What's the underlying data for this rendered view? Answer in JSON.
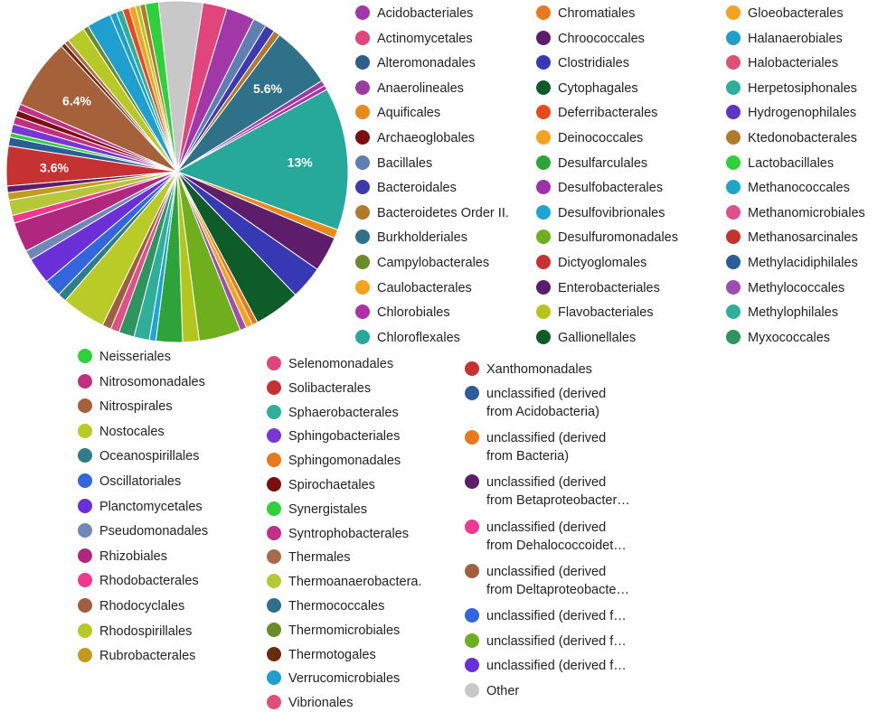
{
  "chart_data": {
    "type": "pie",
    "slices": [
      {
        "name": "Other",
        "value": 4.0,
        "color": "#c8c8c8"
      },
      {
        "name": "Actinomycetales",
        "value": 2.2,
        "color": "#e0457b"
      },
      {
        "name": "Acidobacteriales",
        "value": 2.6,
        "color": "#a237a8"
      },
      {
        "name": "Bacillales",
        "value": 1.2,
        "color": "#5f7fb4"
      },
      {
        "name": "Bacteroidales",
        "value": 0.9,
        "color": "#3c3aae"
      },
      {
        "name": "Bacteroidetes Order II.",
        "value": 0.6,
        "color": "#b07a2a"
      },
      {
        "name": "Burkholderiales",
        "value": 5.6,
        "color": "#2e7189",
        "label": "5.6%"
      },
      {
        "name": "Anaerolineales",
        "value": 0.5,
        "color": "#9b3d9e"
      },
      {
        "name": "Chlorobiales",
        "value": 0.4,
        "color": "#b12fa6"
      },
      {
        "name": "Chloroflexales",
        "value": 13.0,
        "color": "#26a99b",
        "label": "13%"
      },
      {
        "name": "Aquificales",
        "value": 0.8,
        "color": "#e8891c"
      },
      {
        "name": "Chroococcales",
        "value": 3.2,
        "color": "#5d1d6b"
      },
      {
        "name": "Clostridiales",
        "value": 3.0,
        "color": "#3738b4"
      },
      {
        "name": "Cytophagales",
        "value": 4.2,
        "color": "#0f5c2b"
      },
      {
        "name": "Chromatiales",
        "value": 0.5,
        "color": "#e8791c"
      },
      {
        "name": "Deinococcales",
        "value": 0.6,
        "color": "#f5a21e"
      },
      {
        "name": "Methylococcales",
        "value": 0.6,
        "color": "#9b4fb0"
      },
      {
        "name": "Desulfuromonadales",
        "value": 3.8,
        "color": "#6fae1c"
      },
      {
        "name": "Flavobacteriales",
        "value": 1.5,
        "color": "#b4c61e"
      },
      {
        "name": "Desulfarculales",
        "value": 2.4,
        "color": "#2ea33a"
      },
      {
        "name": "Desulfovibrionales",
        "value": 0.6,
        "color": "#1ea5d6"
      },
      {
        "name": "Methylophilales",
        "value": 1.4,
        "color": "#2fae9a"
      },
      {
        "name": "Myxococcales",
        "value": 1.4,
        "color": "#2e9460"
      },
      {
        "name": "Methanomicrobiales",
        "value": 0.8,
        "color": "#e04f8a"
      },
      {
        "name": "Rhodocyclales",
        "value": 0.8,
        "color": "#a06040"
      },
      {
        "name": "Nostocales",
        "value": 4.0,
        "color": "#b8cb26"
      },
      {
        "name": "Oceanospirillales",
        "value": 0.8,
        "color": "#2f7d8a"
      },
      {
        "name": "Oscillatoriales",
        "value": 1.6,
        "color": "#3366dd"
      },
      {
        "name": "Planctomycetales",
        "value": 2.4,
        "color": "#6a2fd6"
      },
      {
        "name": "Pseudomonadales",
        "value": 0.9,
        "color": "#6f88b8"
      },
      {
        "name": "Rhizobiales",
        "value": 2.7,
        "color": "#b0287e"
      },
      {
        "name": "Rhodobacterales",
        "value": 0.7,
        "color": "#f0388f"
      },
      {
        "name": "Thermoanaerobactera.",
        "value": 1.4,
        "color": "#b5c83a"
      },
      {
        "name": "Rubrobacterales",
        "value": 0.7,
        "color": "#c49a1e"
      },
      {
        "name": "Enterobacteriales",
        "value": 0.6,
        "color": "#5e1d6a"
      },
      {
        "name": "Methanosarcinales",
        "value": 3.6,
        "color": "#c63131",
        "label": "3.6%"
      },
      {
        "name": "Methylacidiphilales",
        "value": 0.8,
        "color": "#2d5d96"
      },
      {
        "name": "Lactobacillales",
        "value": 0.4,
        "color": "#2ed13c"
      },
      {
        "name": "Sphingobacteriales",
        "value": 0.8,
        "color": "#7a35d6"
      },
      {
        "name": "Nitrosomonadales",
        "value": 0.7,
        "color": "#c0307f"
      },
      {
        "name": "Spirochaetales",
        "value": 0.6,
        "color": "#7b0f0f"
      },
      {
        "name": "Syntrophobacterales",
        "value": 0.6,
        "color": "#c0308b"
      },
      {
        "name": "Nitrospirales",
        "value": 6.4,
        "color": "#a5613a",
        "label": "6.4%"
      },
      {
        "name": "Thermotogales",
        "value": 0.4,
        "color": "#6a2b0f"
      },
      {
        "name": "Thermales",
        "value": 0.4,
        "color": "#a86a4a"
      },
      {
        "name": "Rhodospirillales",
        "value": 1.7,
        "color": "#b7c926"
      },
      {
        "name": "Thermomicrobiales",
        "value": 0.5,
        "color": "#6b8a2a"
      },
      {
        "name": "Verrucomicrobiales",
        "value": 2.2,
        "color": "#1e9fd0"
      },
      {
        "name": "Halanaerobiales",
        "value": 0.6,
        "color": "#1ea0c8"
      },
      {
        "name": "Herpetosiphonales",
        "value": 0.6,
        "color": "#2fae9e"
      },
      {
        "name": "Deferribacterales",
        "value": 0.6,
        "color": "#e84a1e"
      },
      {
        "name": "Gloeobacterales",
        "value": 0.6,
        "color": "#f5a21e"
      },
      {
        "name": "Flavobacteriales 2",
        "value": 0.4,
        "color": "#b4c61e"
      },
      {
        "name": "Ktedonobacterales",
        "value": 0.5,
        "color": "#b07a2a"
      },
      {
        "name": "Neisseriales",
        "value": 1.2,
        "color": "#2ed13c"
      }
    ]
  },
  "legend": [
    {
      "label": "Acidobacteriales",
      "color": "#a237a8"
    },
    {
      "label": "Actinomycetales",
      "color": "#e0457b"
    },
    {
      "label": "Alteromonadales",
      "color": "#2e5f8a"
    },
    {
      "label": "Anaerolineales",
      "color": "#9b3d9e"
    },
    {
      "label": "Aquificales",
      "color": "#e8891c"
    },
    {
      "label": "Archaeoglobales",
      "color": "#7b0f0f"
    },
    {
      "label": "Bacillales",
      "color": "#5f7fb4"
    },
    {
      "label": "Bacteroidales",
      "color": "#3c3aae"
    },
    {
      "label": "Bacteroidetes Order II.",
      "color": "#b07a2a"
    },
    {
      "label": "Burkholderiales",
      "color": "#2e7189"
    },
    {
      "label": "Campylobacterales",
      "color": "#6b8a2a"
    },
    {
      "label": "Caulobacterales",
      "color": "#f5a21e"
    },
    {
      "label": "Chlorobiales",
      "color": "#b12fa6"
    },
    {
      "label": "Chloroflexales",
      "color": "#26a99b"
    },
    {
      "label": "Chromatiales",
      "color": "#e8791c"
    },
    {
      "label": "Chroococcales",
      "color": "#5d1d6b"
    },
    {
      "label": "Clostridiales",
      "color": "#3738b4"
    },
    {
      "label": "Cytophagales",
      "color": "#0f5c2b"
    },
    {
      "label": "Deferribacterales",
      "color": "#e84a1e"
    },
    {
      "label": "Deinococcales",
      "color": "#f5a21e"
    },
    {
      "label": "Desulfarculales",
      "color": "#2ea33a"
    },
    {
      "label": "Desulfobacterales",
      "color": "#a030b0"
    },
    {
      "label": "Desulfovibrionales",
      "color": "#1ea5d6"
    },
    {
      "label": "Desulfuromonadales",
      "color": "#6fae1c"
    },
    {
      "label": "Dictyoglomales",
      "color": "#c63131"
    },
    {
      "label": "Enterobacteriales",
      "color": "#5e1d6a"
    },
    {
      "label": "Flavobacteriales",
      "color": "#b4c61e"
    },
    {
      "label": "Gallionellales",
      "color": "#0f5c2b"
    },
    {
      "label": "Gloeobacterales",
      "color": "#f5a21e"
    },
    {
      "label": "Halanaerobiales",
      "color": "#1ea0c8"
    },
    {
      "label": "Halobacteriales",
      "color": "#e04f7a"
    },
    {
      "label": "Herpetosiphonales",
      "color": "#2fae9e"
    },
    {
      "label": "Hydrogenophilales",
      "color": "#5a35c8"
    },
    {
      "label": "Ktedonobacterales",
      "color": "#b07a2a"
    },
    {
      "label": "Lactobacillales",
      "color": "#2ed13c"
    },
    {
      "label": "Methanococcales",
      "color": "#1ea5c8"
    },
    {
      "label": "Methanomicrobiales",
      "color": "#e04f8a"
    },
    {
      "label": "Methanosarcinales",
      "color": "#c63131"
    },
    {
      "label": "Methylacidiphilales",
      "color": "#2d5d96"
    },
    {
      "label": "Methylococcales",
      "color": "#9b4fb0"
    },
    {
      "label": "Methylophilales",
      "color": "#2fae9a"
    },
    {
      "label": "Myxococcales",
      "color": "#2e9460"
    },
    {
      "label": "Neisseriales",
      "color": "#2ed13c"
    },
    {
      "label": "Nitrosomonadales",
      "color": "#c0307f"
    },
    {
      "label": "Nitrospirales",
      "color": "#a5613a"
    },
    {
      "label": "Nostocales",
      "color": "#b8cb26"
    },
    {
      "label": "Oceanospirillales",
      "color": "#2f7d8a"
    },
    {
      "label": "Oscillatoriales",
      "color": "#3366dd"
    },
    {
      "label": "Planctomycetales",
      "color": "#6a2fd6"
    },
    {
      "label": "Pseudomonadales",
      "color": "#6f88b8"
    },
    {
      "label": "Rhizobiales",
      "color": "#b0287e"
    },
    {
      "label": "Rhodobacterales",
      "color": "#f0388f"
    },
    {
      "label": "Rhodocyclales",
      "color": "#a06040"
    },
    {
      "label": "Rhodospirillales",
      "color": "#b7c926"
    },
    {
      "label": "Rubrobacterales",
      "color": "#c49a1e"
    },
    {
      "label": "Selenomonadales",
      "color": "#e0457b"
    },
    {
      "label": "Solibacterales",
      "color": "#c63131"
    },
    {
      "label": "Sphaerobacterales",
      "color": "#2fae9a"
    },
    {
      "label": "Sphingobacteriales",
      "color": "#7a35d6"
    },
    {
      "label": "Sphingomonadales",
      "color": "#e8791c"
    },
    {
      "label": "Spirochaetales",
      "color": "#7b0f0f"
    },
    {
      "label": "Synergistales",
      "color": "#2ed13c"
    },
    {
      "label": "Syntrophobacterales",
      "color": "#c0308b"
    },
    {
      "label": "Thermales",
      "color": "#a86a4a"
    },
    {
      "label": "Thermoanaerobactera.",
      "color": "#b5c83a"
    },
    {
      "label": "Thermococcales",
      "color": "#2f6f8a"
    },
    {
      "label": "Thermomicrobiales",
      "color": "#6b8a2a"
    },
    {
      "label": "Thermotogales",
      "color": "#6a2b0f"
    },
    {
      "label": "Verrucomicrobiales",
      "color": "#1e9fd0"
    },
    {
      "label": "Vibrionales",
      "color": "#e04f7a"
    },
    {
      "label": "Xanthomonadales",
      "color": "#c63131"
    },
    {
      "label": "unclassified (derived\nfrom Acidobacteria)",
      "color": "#2d5d96"
    },
    {
      "label": "unclassified (derived\nfrom Bacteria)",
      "color": "#e8791c"
    },
    {
      "label": "unclassified (derived\nfrom Betaproteobacter…",
      "color": "#5e1d6a"
    },
    {
      "label": "unclassified (derived\nfrom Dehalococcoidet…",
      "color": "#f0388f"
    },
    {
      "label": "unclassified (derived\nfrom Deltaproteobacte…",
      "color": "#a06040"
    },
    {
      "label": "unclassified (derived f…",
      "color": "#3366dd"
    },
    {
      "label": "unclassified (derived f…",
      "color": "#6fae1c"
    },
    {
      "label": "unclassified (derived f…",
      "color": "#6a2fd6"
    },
    {
      "label": "Other",
      "color": "#c8c8c8"
    }
  ]
}
